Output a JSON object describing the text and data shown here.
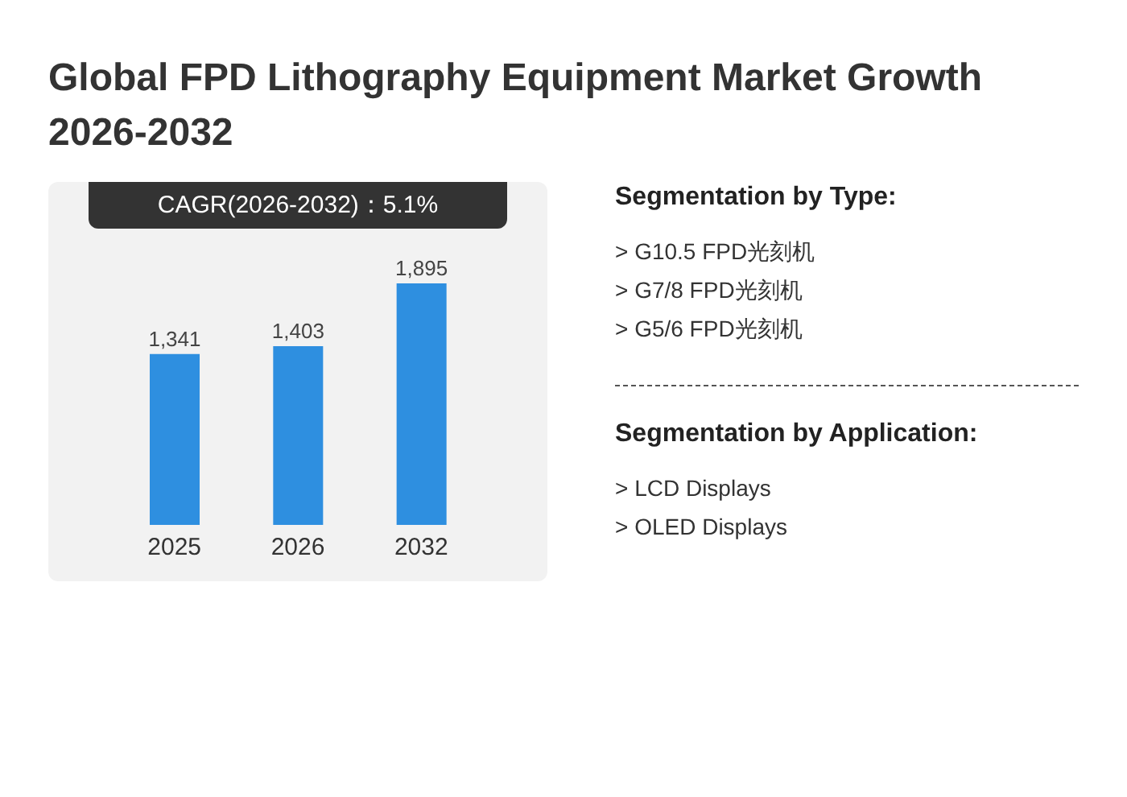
{
  "chart_data": [
    {
      "type": "bar",
      "title": "Global FPD Lithography Equipment Market Growth 2026-2032",
      "annotations": [
        "CAGR(2026-2032)：5.1%"
      ],
      "categories": [
        "2025",
        "2026",
        "2032"
      ],
      "values": [
        1341,
        1403,
        1895
      ],
      "color": "#2e8fe0",
      "value_labels": [
        "1,341",
        "1,403",
        "1,895"
      ]
    },
    {
      "type": "other",
      "title": "Segmentation by Type:",
      "annotations": [
        "> G10.5 FPD光刻机",
        "> G7/8 FPD光刻机",
        "> G5/6 FPD光刻机"
      ]
    },
    {
      "type": "other",
      "title": "Segmentation by Application:",
      "annotations": [
        "> LCD Displays",
        "> OLED Displays"
      ]
    }
  ]
}
